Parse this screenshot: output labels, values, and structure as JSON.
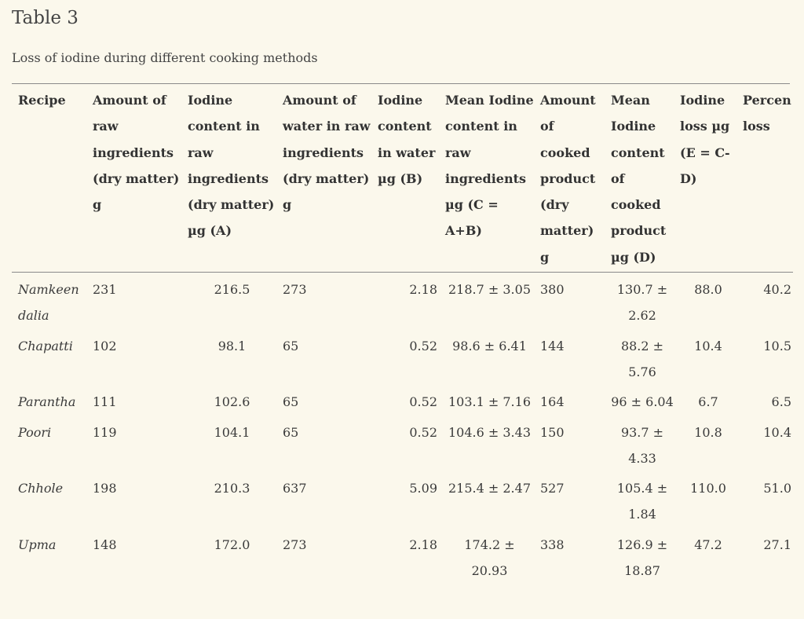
{
  "table_label": "Table 3",
  "caption": "Loss of iodine during different cooking methods",
  "headers": [
    "Recipe",
    "Amount of raw ingredients (dry matter) g",
    "Iodine content in raw ingredients (dry matter) µg (A)",
    "Amount of water in raw ingredients (dry matter) g",
    "Iodine content in water µg (B)",
    "Mean Iodine content in raw ingredients µg (C = A+B)",
    "Amount of cooked product (dry matter) g",
    "Mean Iodine content of cooked product µg (D)",
    "Iodine loss µg (E = C-D)",
    "Percen loss"
  ],
  "rows": [
    [
      "Namkeen dalia",
      "231",
      "216.5",
      "273",
      "2.18",
      "218.7 ± 3.05",
      "380",
      "130.7 ± 2.62",
      "88.0",
      "40.2"
    ],
    [
      "Chapatti",
      "102",
      "98.1",
      "65",
      "0.52",
      "98.6 ± 6.41",
      "144",
      "88.2 ± 5.76",
      "10.4",
      "10.5"
    ],
    [
      "Parantha",
      "111",
      "102.6",
      "65",
      "0.52",
      "103.1 ± 7.16",
      "164",
      "96 ± 6.04",
      "6.7",
      "6.5"
    ],
    [
      "Poori",
      "119",
      "104.1",
      "65",
      "0.52",
      "104.6 ± 3.43",
      "150",
      "93.7 ± 4.33",
      "10.8",
      "10.4"
    ],
    [
      "Chhole",
      "198",
      "210.3",
      "637",
      "5.09",
      "215.4 ± 2.47",
      "527",
      "105.4 ± 1.84",
      "110.0",
      "51.0"
    ],
    [
      "Upma",
      "148",
      "172.0",
      "273",
      "2.18",
      "174.2 ± 20.93",
      "338",
      "126.9 ± 18.87",
      "47.2",
      "27.1"
    ]
  ]
}
